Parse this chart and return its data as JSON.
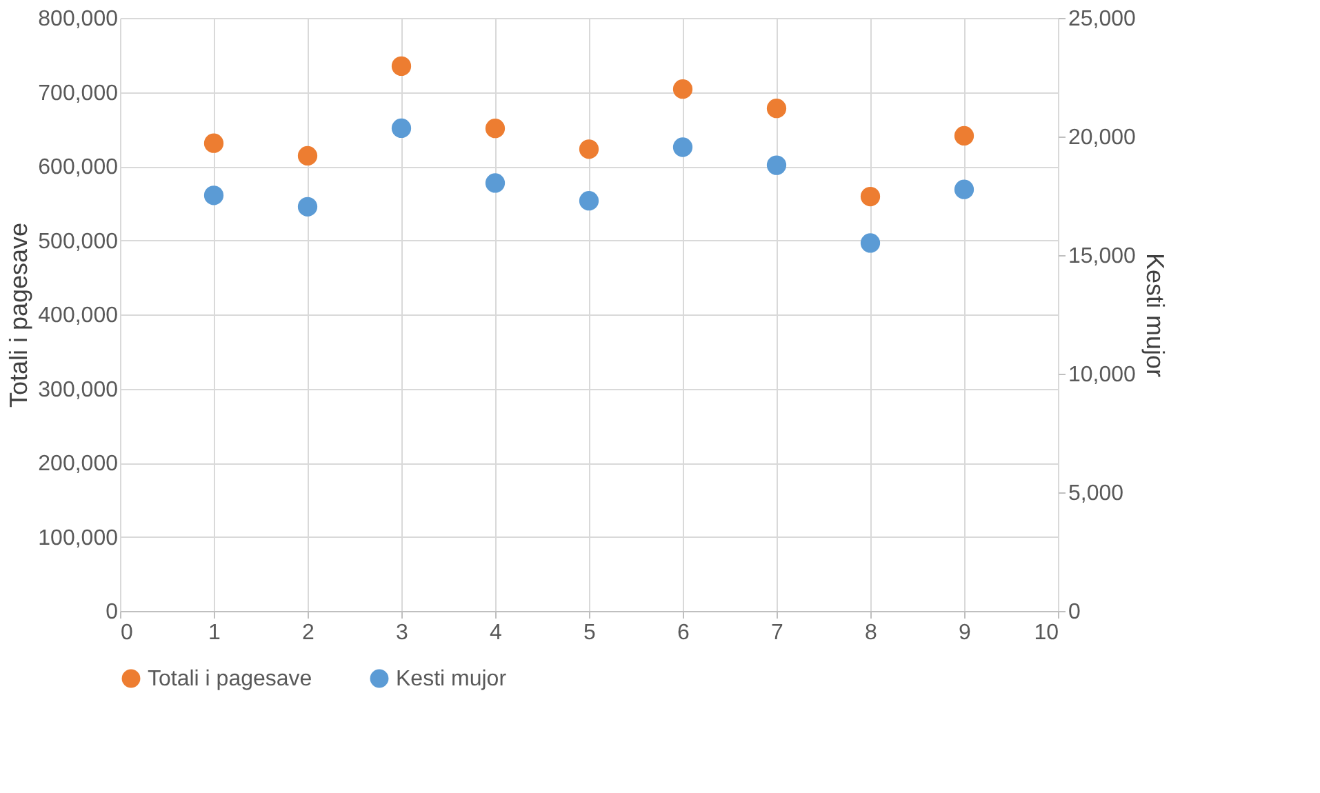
{
  "chart_data": {
    "type": "scatter",
    "ylabel": "Totali i pagesave",
    "y2label": "Kesti mujor",
    "x": [
      1,
      2,
      3,
      4,
      5,
      6,
      7,
      8,
      9
    ],
    "series": [
      {
        "name": "Totali i pagesave",
        "color": "#ed7d31",
        "values": [
          631000,
          614000,
          735000,
          651000,
          623000,
          704000,
          678000,
          559000,
          641000
        ]
      },
      {
        "name": "Kesti mujor",
        "color": "#5b9bd5",
        "axis": "y2",
        "values": [
          17520,
          17040,
          20350,
          18040,
          17290,
          19550,
          18790,
          15510,
          17770
        ]
      }
    ],
    "xlim": [
      0,
      10
    ],
    "xticks": [
      0,
      1,
      2,
      3,
      4,
      5,
      6,
      7,
      8,
      9,
      10
    ],
    "ylim": [
      0,
      800000
    ],
    "yticks": [
      0,
      {
        "value": 100000,
        "label": "100,000"
      },
      {
        "value": 200000,
        "label": "200,000"
      },
      {
        "value": 300000,
        "label": "300,000"
      },
      {
        "value": 400000,
        "label": "400,000"
      },
      {
        "value": 500000,
        "label": "500,000"
      },
      {
        "value": 600000,
        "label": "600,000"
      },
      {
        "value": 700000,
        "label": "700,000"
      },
      {
        "value": 800000,
        "label": "800,000"
      }
    ],
    "y2lim": [
      0,
      25000
    ],
    "y2ticks": [
      0,
      {
        "value": 5000,
        "label": "5,000"
      },
      {
        "value": 10000,
        "label": "10,000"
      },
      {
        "value": 15000,
        "label": "15,000"
      },
      {
        "value": 20000,
        "label": "20,000"
      },
      {
        "value": 25000,
        "label": "25,000"
      }
    ],
    "grid": true,
    "legend": "bottom",
    "marker": "circle"
  }
}
